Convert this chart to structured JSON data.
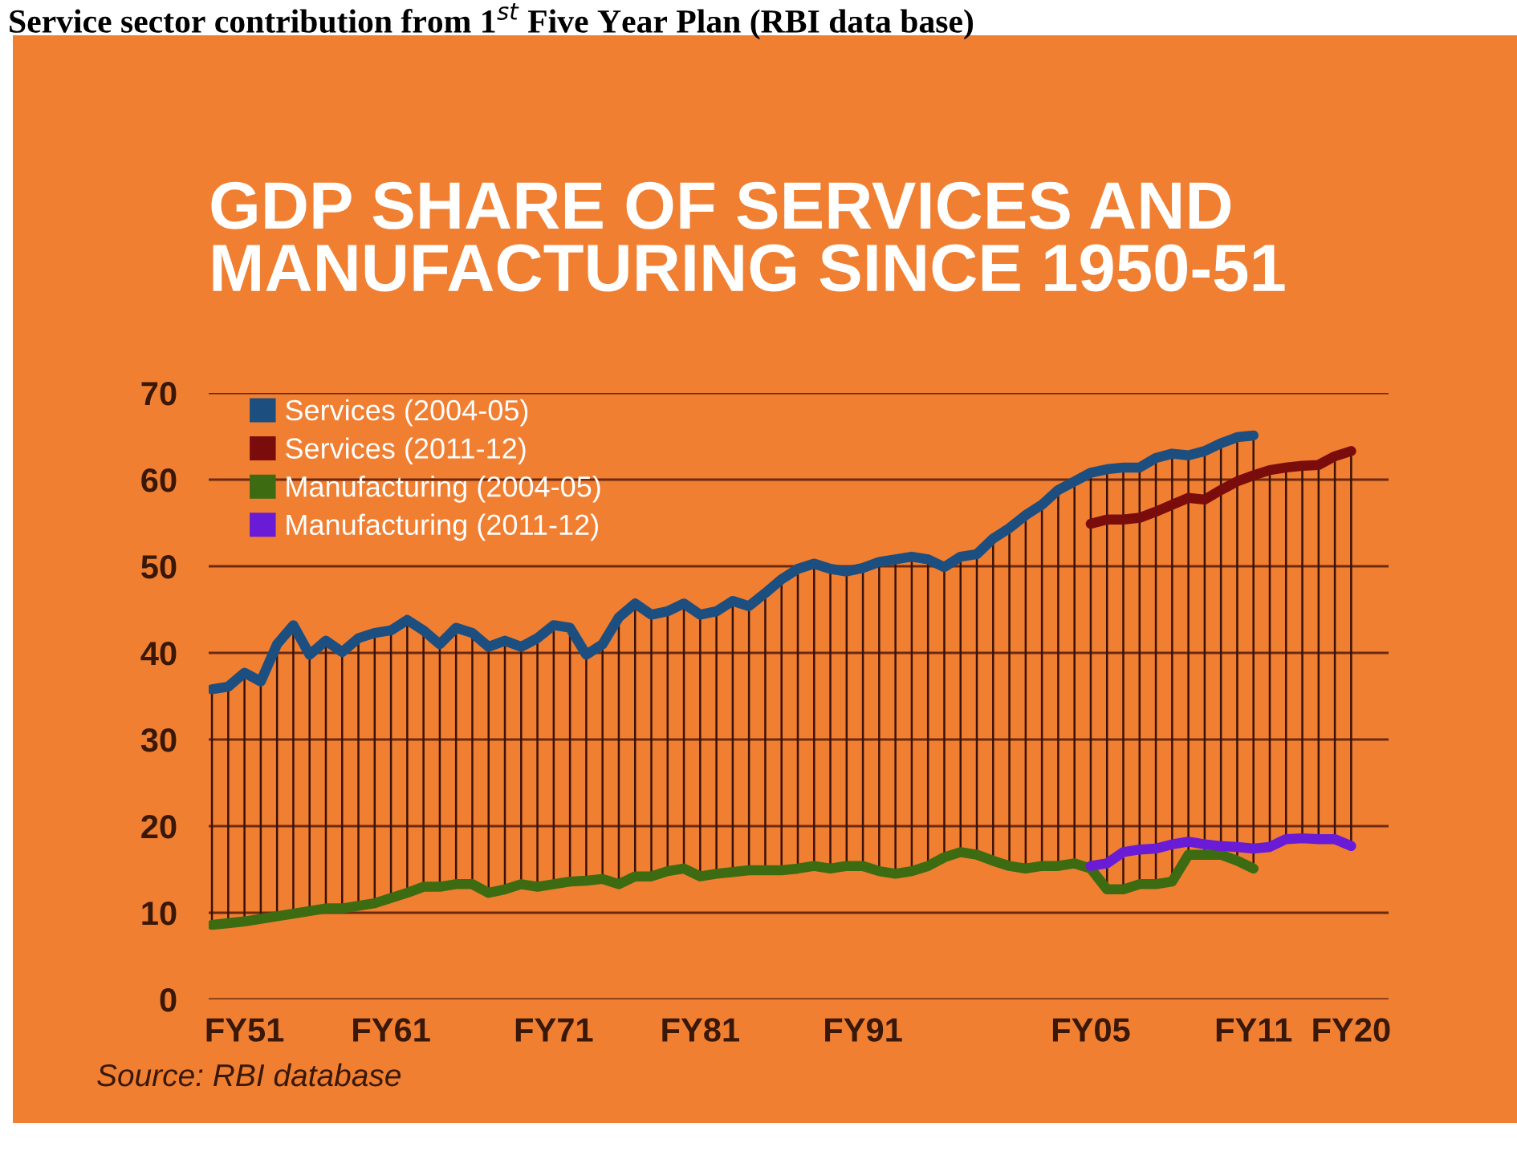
{
  "chart_data": {
    "type": "line",
    "title": "GDP SHARE OF SERVICES AND MANUFACTURING SINCE 1950-51",
    "subtitle": "Service sector contribution from 1$^{st}$ Five Year Plan (RBI data base)",
    "annotations": [
      "Source: RBI database"
    ],
    "categories": [
      null,
      null,
      "FY51",
      null,
      null,
      null,
      null,
      null,
      null,
      null,
      null,
      "FY61",
      null,
      null,
      null,
      null,
      null,
      null,
      null,
      null,
      null,
      "FY71",
      null,
      null,
      null,
      null,
      null,
      null,
      null,
      null,
      "FY81",
      null,
      null,
      null,
      null,
      null,
      null,
      null,
      null,
      null,
      "FY91",
      null,
      null,
      null,
      null,
      null,
      null,
      null,
      null,
      null,
      null,
      null,
      null,
      null,
      "FY05",
      null,
      null,
      null,
      null,
      null,
      null,
      null,
      null,
      null,
      "FY11",
      null,
      null,
      null,
      null,
      null,
      "FY20"
    ],
    "series": [
      {
        "name": "Services (2004-05)",
        "color": "#1c4f80",
        "values": [
          35.8,
          36.1,
          37.7,
          36.7,
          41.0,
          43.2,
          39.8,
          41.4,
          40.1,
          41.7,
          42.3,
          42.6,
          43.8,
          42.6,
          41.0,
          42.9,
          42.3,
          40.7,
          41.4,
          40.7,
          41.7,
          43.2,
          42.9,
          39.8,
          41.0,
          44.1,
          45.7,
          44.4,
          44.8,
          45.7,
          44.4,
          44.8,
          46.0,
          45.4,
          46.9,
          48.5,
          49.7,
          50.3,
          49.7,
          49.4,
          49.8,
          50.5,
          50.8,
          51.1,
          50.8,
          49.9,
          51.1,
          51.4,
          53.2,
          54.4,
          55.9,
          57.1,
          58.8,
          59.8,
          60.8,
          61.2,
          61.4,
          61.4,
          62.5,
          63.0,
          62.8,
          63.3,
          64.2,
          64.9,
          65.1,
          null,
          null,
          null,
          null,
          null,
          null
        ]
      },
      {
        "name": "Services (2011-12)",
        "color": "#7a0c0c",
        "values": [
          null,
          null,
          null,
          null,
          null,
          null,
          null,
          null,
          null,
          null,
          null,
          null,
          null,
          null,
          null,
          null,
          null,
          null,
          null,
          null,
          null,
          null,
          null,
          null,
          null,
          null,
          null,
          null,
          null,
          null,
          null,
          null,
          null,
          null,
          null,
          null,
          null,
          null,
          null,
          null,
          null,
          null,
          null,
          null,
          null,
          null,
          null,
          null,
          null,
          null,
          null,
          null,
          null,
          null,
          54.9,
          55.4,
          55.4,
          55.6,
          56.3,
          57.1,
          57.9,
          57.7,
          58.8,
          59.8,
          60.5,
          61.1,
          61.4,
          61.6,
          61.7,
          62.7,
          63.3
        ]
      },
      {
        "name": "Manufacturing (2004-05)",
        "color": "#3d6b12",
        "values": [
          8.6,
          8.8,
          9.0,
          9.3,
          9.6,
          9.9,
          10.2,
          10.5,
          10.5,
          10.8,
          11.1,
          11.7,
          12.3,
          13.0,
          13.0,
          13.3,
          13.3,
          12.3,
          12.7,
          13.3,
          13.0,
          13.3,
          13.6,
          13.7,
          13.9,
          13.3,
          14.2,
          14.2,
          14.8,
          15.1,
          14.2,
          14.5,
          14.7,
          14.9,
          14.9,
          14.9,
          15.1,
          15.4,
          15.1,
          15.4,
          15.4,
          14.8,
          14.5,
          14.8,
          15.4,
          16.4,
          17.0,
          16.7,
          16.0,
          15.4,
          15.1,
          15.4,
          15.4,
          15.7,
          15.1,
          12.7,
          12.7,
          13.3,
          13.3,
          13.6,
          16.7,
          16.7,
          16.7,
          16.0,
          15.1,
          null,
          null,
          null,
          null,
          null,
          null
        ]
      },
      {
        "name": "Manufacturing (2011-12)",
        "color": "#6a1bd6",
        "values": [
          null,
          null,
          null,
          null,
          null,
          null,
          null,
          null,
          null,
          null,
          null,
          null,
          null,
          null,
          null,
          null,
          null,
          null,
          null,
          null,
          null,
          null,
          null,
          null,
          null,
          null,
          null,
          null,
          null,
          null,
          null,
          null,
          null,
          null,
          null,
          null,
          null,
          null,
          null,
          null,
          null,
          null,
          null,
          null,
          null,
          null,
          null,
          null,
          null,
          null,
          null,
          null,
          null,
          null,
          15.4,
          15.7,
          17.0,
          17.3,
          17.4,
          17.9,
          18.2,
          17.9,
          17.7,
          17.6,
          17.4,
          17.6,
          18.5,
          18.6,
          18.5,
          18.5,
          17.7
        ]
      }
    ],
    "ylim": [
      0,
      70
    ],
    "yticks": [
      0,
      10,
      20,
      30,
      40,
      50,
      60,
      70
    ],
    "grid": "y",
    "legend": "top left",
    "marker": "none",
    "line_style": "solid"
  }
}
